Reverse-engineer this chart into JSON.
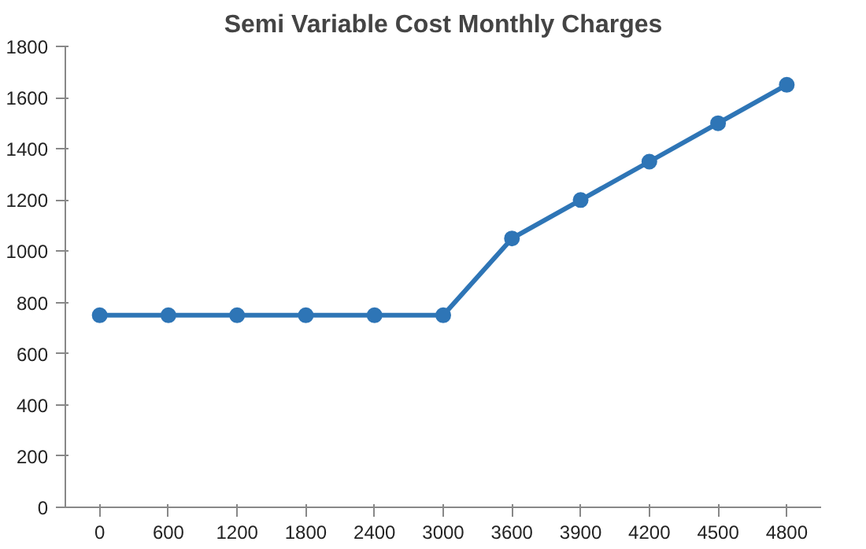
{
  "chart_data": {
    "type": "line",
    "title": "Semi Variable Cost Monthly Charges",
    "categories": [
      "0",
      "600",
      "1200",
      "1800",
      "2400",
      "3000",
      "3600",
      "3900",
      "4200",
      "4500",
      "4800"
    ],
    "series": [
      {
        "color": "#2e75b6",
        "values": [
          750,
          750,
          750,
          750,
          750,
          750,
          1050,
          1200,
          1350,
          1500,
          1650
        ]
      }
    ],
    "ylim": [
      0,
      1800
    ],
    "yticks": [
      0,
      200,
      400,
      600,
      800,
      1000,
      1200,
      1400,
      1600,
      1800
    ],
    "grid": false,
    "marker": "circle",
    "line_style": "solid"
  }
}
